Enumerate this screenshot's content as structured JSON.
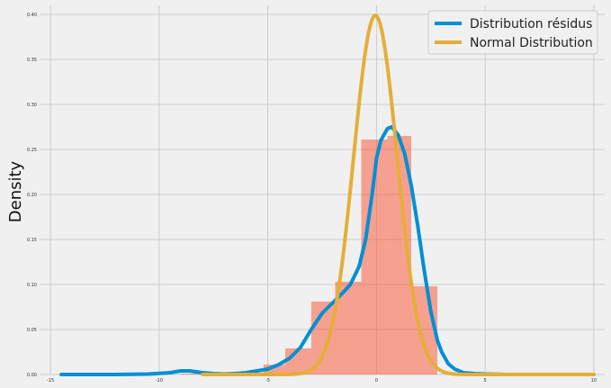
{
  "chart_data": {
    "type": "histogram+kde",
    "title": "",
    "xlabel": "",
    "ylabel": "Density",
    "xlim": [
      -15.5,
      10.5
    ],
    "ylim": [
      0,
      0.41
    ],
    "xticks": [
      -15,
      -10,
      -5,
      0,
      5,
      10
    ],
    "yticks": [
      0.0,
      0.05,
      0.1,
      0.15,
      0.2,
      0.25,
      0.3,
      0.35,
      0.4
    ],
    "ytick_labels": [
      "0.00",
      "0.05",
      "0.10",
      "0.15",
      "0.20",
      "0.25",
      "0.30",
      "0.35",
      "0.40"
    ],
    "grid": true,
    "legend_position": "top-right",
    "histogram": {
      "color": "#fc4f30",
      "bins": [
        {
          "x0": -9.0,
          "x1": -7.8,
          "density": 0.001
        },
        {
          "x0": -7.8,
          "x1": -6.1,
          "density": 0.0
        },
        {
          "x0": -5.2,
          "x1": -4.2,
          "density": 0.011
        },
        {
          "x0": -4.2,
          "x1": -3.0,
          "density": 0.029
        },
        {
          "x0": -3.0,
          "x1": -1.9,
          "density": 0.081
        },
        {
          "x0": -1.9,
          "x1": -0.7,
          "density": 0.103
        },
        {
          "x0": -0.7,
          "x1": 0.5,
          "density": 0.261
        },
        {
          "x0": 0.5,
          "x1": 1.6,
          "density": 0.265
        },
        {
          "x0": 1.6,
          "x1": 2.8,
          "density": 0.098
        }
      ]
    },
    "series": [
      {
        "name": "Distribution résidus",
        "color": "#008fd5",
        "x": [
          -14.5,
          -12,
          -10.5,
          -9.5,
          -9.0,
          -8.6,
          -8.0,
          -7.5,
          -7.0,
          -6.5,
          -6.0,
          -5.5,
          -5.0,
          -4.5,
          -4.0,
          -3.5,
          -3.0,
          -2.5,
          -2.0,
          -1.5,
          -1.2,
          -0.8,
          -0.5,
          -0.2,
          0.0,
          0.2,
          0.5,
          0.7,
          1.0,
          1.3,
          1.6,
          1.9,
          2.2,
          2.5,
          2.8,
          3.0,
          3.3,
          3.6,
          4.0,
          4.5,
          5.0,
          6.0,
          8.0,
          10.0
        ],
        "y": [
          0.0,
          0.0,
          0.0005,
          0.002,
          0.004,
          0.004,
          0.002,
          0.001,
          0.0005,
          0.001,
          0.002,
          0.004,
          0.006,
          0.011,
          0.018,
          0.03,
          0.05,
          0.068,
          0.08,
          0.092,
          0.1,
          0.12,
          0.15,
          0.2,
          0.24,
          0.26,
          0.273,
          0.275,
          0.266,
          0.245,
          0.21,
          0.165,
          0.115,
          0.07,
          0.038,
          0.025,
          0.012,
          0.006,
          0.002,
          0.001,
          0.0005,
          0.0,
          0.0,
          0.0
        ]
      },
      {
        "name": "Normal Distribution",
        "color": "#e5ae38",
        "distribution": {
          "mean": -0.05,
          "sd": 1.0,
          "x_min": -8.0,
          "x_max": 10.0
        }
      }
    ]
  }
}
